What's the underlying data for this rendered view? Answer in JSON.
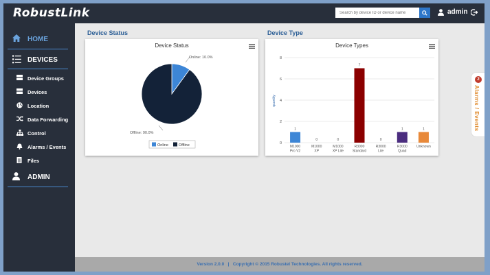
{
  "app": {
    "logo": "RobustLink",
    "search_placeholder": "Search by device ID or device name",
    "user": "admin"
  },
  "sidebar": {
    "home": "HOME",
    "devices": "DEVICES",
    "items": [
      {
        "label": "Device Groups",
        "icon": "device-groups-icon"
      },
      {
        "label": "Devices",
        "icon": "devices-icon"
      },
      {
        "label": "Location",
        "icon": "globe-icon"
      },
      {
        "label": "Data Forwarding",
        "icon": "shuffle-icon"
      },
      {
        "label": "Control",
        "icon": "sitemap-icon"
      },
      {
        "label": "Alarms / Events",
        "icon": "bell-icon"
      },
      {
        "label": "Files",
        "icon": "file-icon"
      }
    ],
    "admin": "ADMIN"
  },
  "device_status": {
    "section_title": "Device Status",
    "panel_title": "Device Status",
    "online_label": "Online: 10.0%",
    "offline_label": "Offline: 90.0%",
    "legend_online": "Online",
    "legend_offline": "Offline"
  },
  "device_type": {
    "section_title": "Device Type",
    "panel_title": "Device Types",
    "ylabel": "quantity"
  },
  "chart_data": [
    {
      "type": "pie",
      "title": "Device Status",
      "categories": [
        "Online",
        "Offline"
      ],
      "values": [
        10.0,
        90.0
      ],
      "colors": [
        "#3d86d6",
        "#132238"
      ],
      "legend": "bottom"
    },
    {
      "type": "bar",
      "title": "Device Types",
      "ylabel": "quantity",
      "ylim": [
        0,
        8
      ],
      "yticks": [
        0,
        2,
        4,
        6,
        8
      ],
      "categories": [
        [
          "M1000",
          "Pro V2"
        ],
        [
          "M1000",
          "XP"
        ],
        [
          "M1000",
          "XP Lite"
        ],
        [
          "R3000",
          "Standard"
        ],
        [
          "R3000",
          "Lite"
        ],
        [
          "R3000",
          "Quad"
        ],
        [
          "Unknown"
        ]
      ],
      "values": [
        1,
        0,
        0,
        7,
        0,
        1,
        1
      ],
      "colors": [
        "#3d86d6",
        "#3d86d6",
        "#3d86d6",
        "#8b0000",
        "#8b0000",
        "#4b2d7f",
        "#e8893a"
      ],
      "grid": true
    }
  ],
  "alarms": {
    "count": "2",
    "label": "Alarms / Events"
  },
  "footer": {
    "text": "Version 2.0.0   |   Copyright © 2015 Robustel Technologies. All rights reserved."
  },
  "colors": {
    "topbar": "#282f3b",
    "accent": "#2e77c9",
    "section_title": "#2a5d95"
  }
}
